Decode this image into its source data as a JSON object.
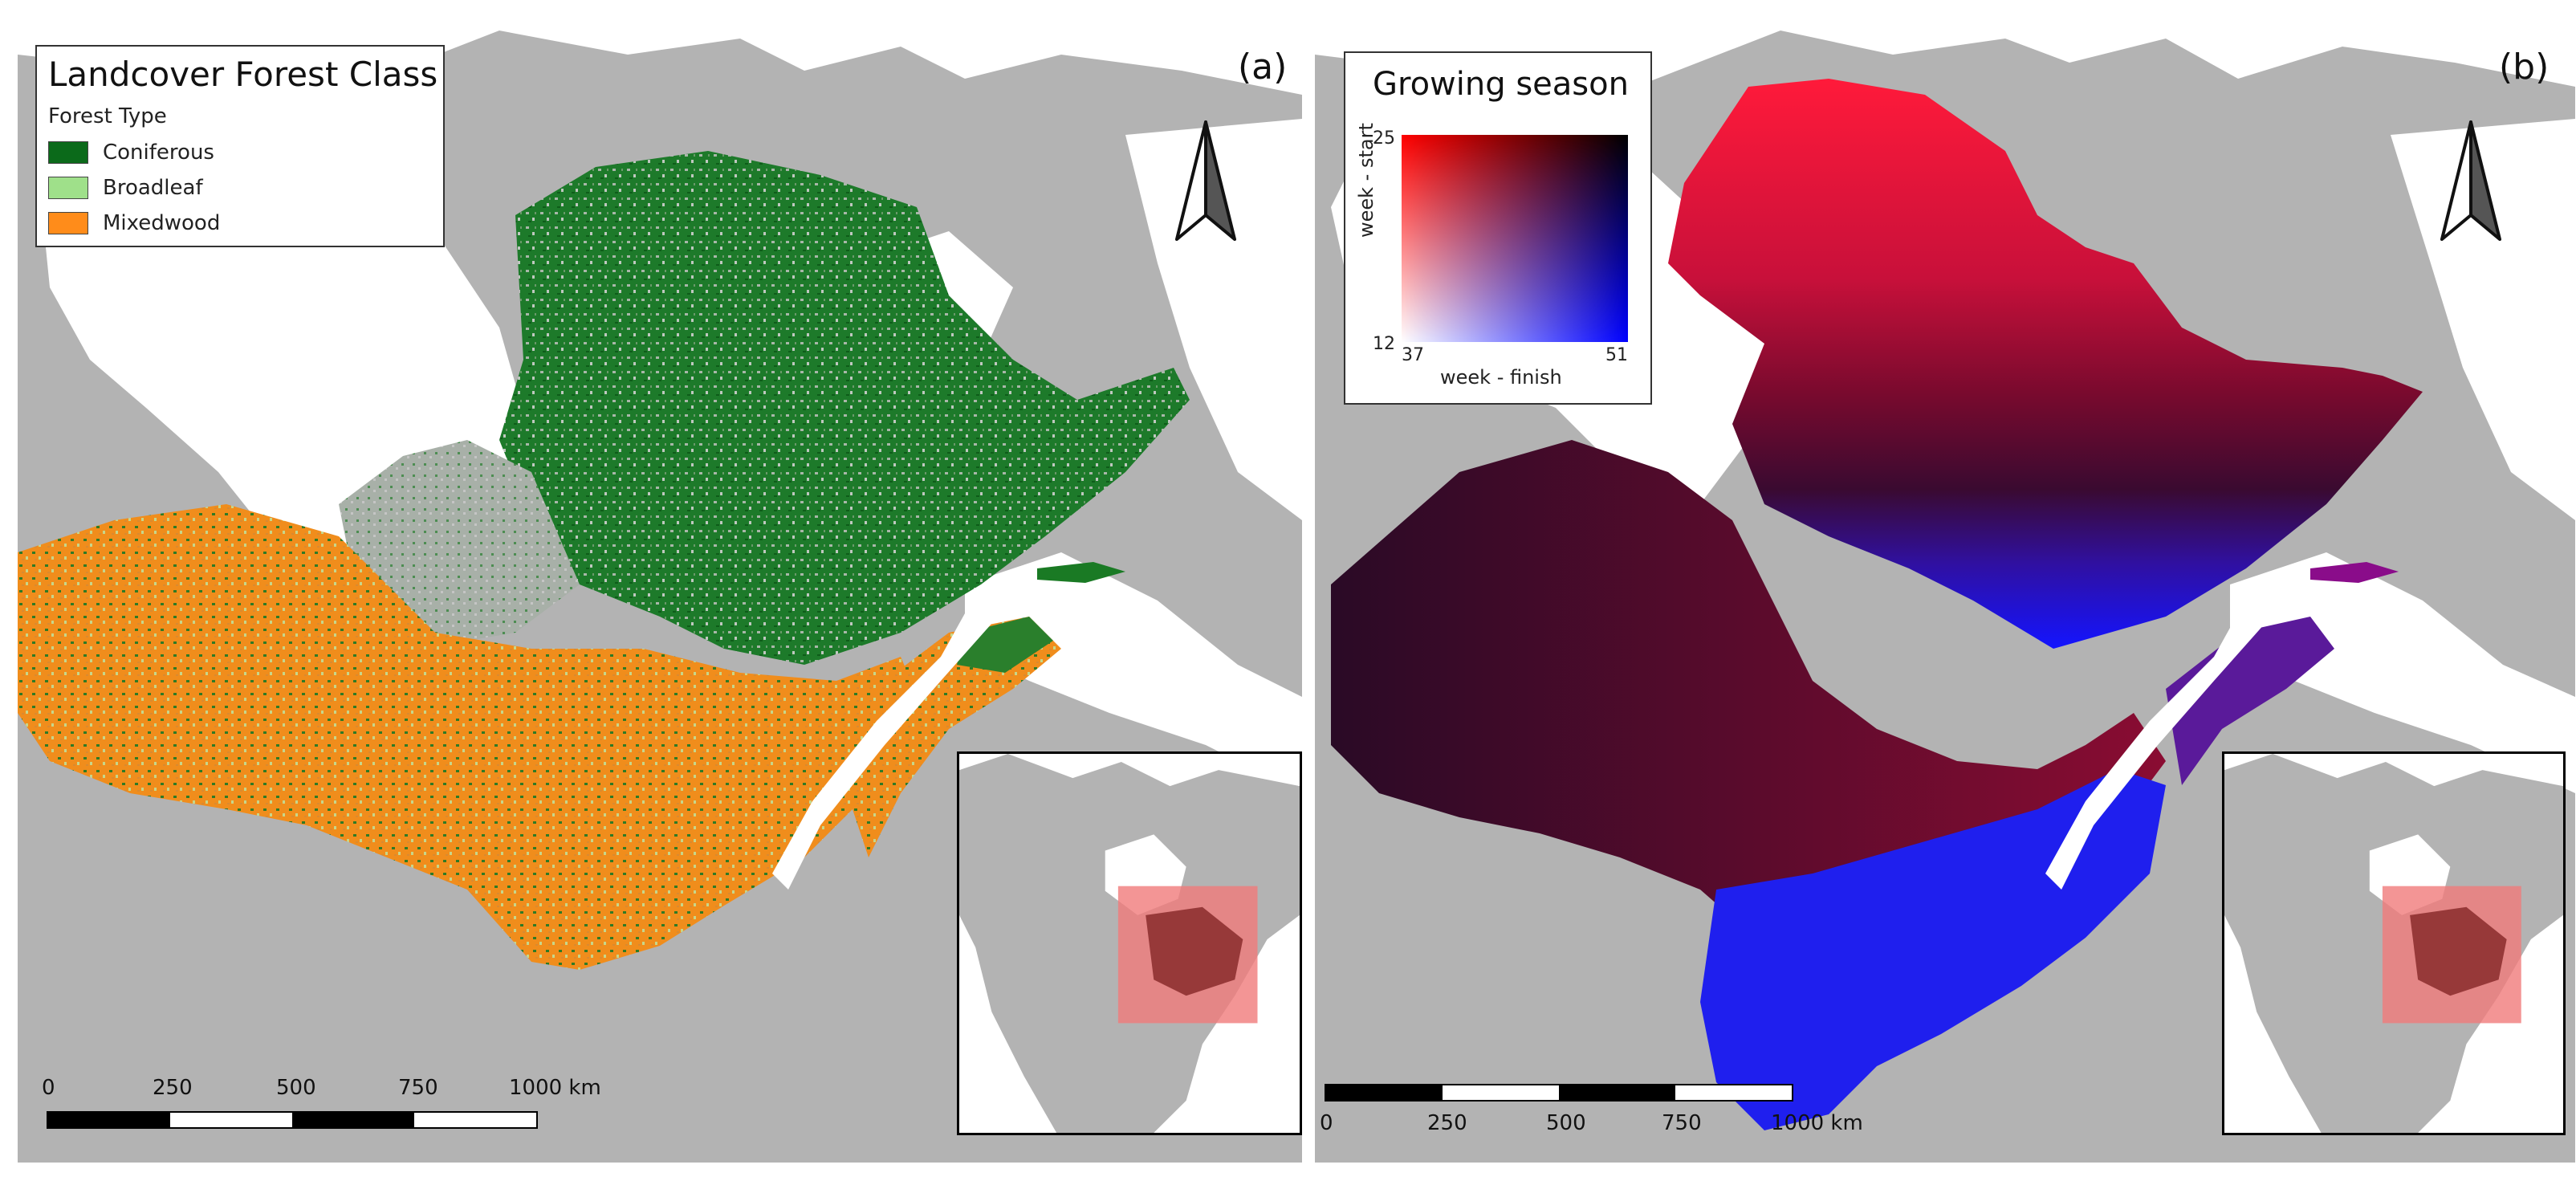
{
  "panel_a": {
    "letter": "(a)",
    "legend": {
      "title": "Landcover Forest Class",
      "subtitle": "Forest Type",
      "items": [
        {
          "label": "Coniferous",
          "color": "#0b6a1a"
        },
        {
          "label": "Broadleaf",
          "color": "#9fe08a"
        },
        {
          "label": "Mixedwood",
          "color": "#ff8c1a"
        }
      ]
    },
    "scale": {
      "labels": [
        "0",
        "250",
        "500",
        "750",
        "1000 km"
      ]
    }
  },
  "panel_b": {
    "letter": "(b)",
    "legend": {
      "title": "Growing season",
      "y_axis_label": "week - start",
      "x_axis_label": "week - finish",
      "y_ticks": [
        "25",
        "12"
      ],
      "x_ticks": [
        "37",
        "51"
      ],
      "corner_colors": {
        "top_left": "#ff0000",
        "top_right": "#000000",
        "bottom_left": "#ffffff",
        "bottom_right": "#0000ff"
      }
    },
    "scale": {
      "labels": [
        "0",
        "250",
        "500",
        "750",
        "1000 km"
      ]
    }
  },
  "colors": {
    "land": "#b3b3b3",
    "water": "#ffffff",
    "inset_highlight": "#f07a7a"
  },
  "icons": {
    "north_arrow": "north-arrow-icon"
  }
}
